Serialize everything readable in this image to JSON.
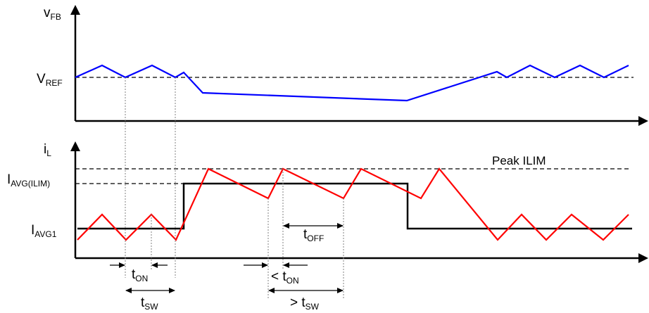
{
  "colors": {
    "vfb_trace": "#0000ff",
    "il_trace": "#ff0000",
    "avg_trace": "#000000",
    "axis": "#000000",
    "guides": "#808080"
  },
  "labels": {
    "vfb": {
      "main": "v",
      "sub": "FB"
    },
    "vref": {
      "main": "V",
      "sub": "REF"
    },
    "il": {
      "main": "i",
      "sub": "L"
    },
    "iavg_ilim": {
      "main": "I",
      "sub": "AVG(ILIM)"
    },
    "iavg1": {
      "main": "I",
      "sub": "AVG1"
    },
    "peak_ilim": "Peak ILIM",
    "ton_1": {
      "main": "t",
      "sub": "ON"
    },
    "tsw_1": {
      "main": "t",
      "sub": "SW"
    },
    "ton_2": {
      "prefix": "< ",
      "main": "t",
      "sub": "ON"
    },
    "toff": {
      "main": "t",
      "sub": "OFF"
    },
    "tsw_2": {
      "prefix": "> ",
      "main": "t",
      "sub": "SW"
    }
  }
}
